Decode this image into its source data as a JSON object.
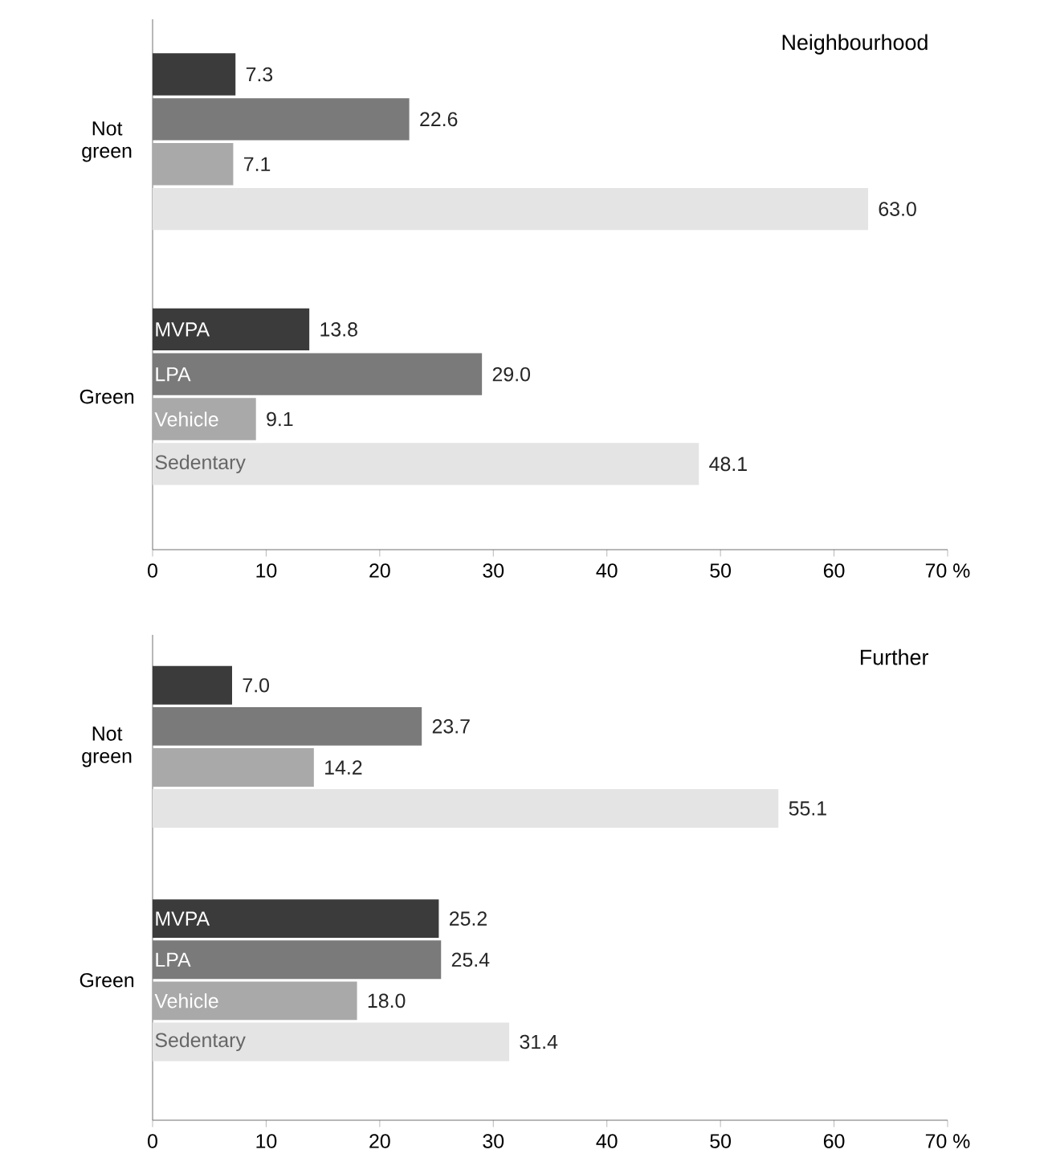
{
  "chart_data": [
    {
      "type": "bar",
      "orientation": "horizontal",
      "title": "Neighbourhood",
      "categories": [
        "Not green",
        "Green"
      ],
      "legend": false,
      "series": [
        {
          "name": "MVPA",
          "color": "#3b3b3b",
          "values": [
            7.3,
            13.8
          ],
          "value_labels": [
            "7.3",
            "13.8"
          ]
        },
        {
          "name": "LPA",
          "color": "#7a7a7a",
          "values": [
            22.6,
            29.0
          ],
          "value_labels": [
            "22.6",
            "29.0"
          ]
        },
        {
          "name": "Vehicle",
          "color": "#a9a9a9",
          "values": [
            7.1,
            9.1
          ],
          "value_labels": [
            "7.1",
            "9.1"
          ]
        },
        {
          "name": "Sedentary",
          "color": "#e4e4e4",
          "values": [
            63.0,
            48.1
          ],
          "value_labels": [
            "63.0",
            "48.1"
          ]
        }
      ],
      "xlim": [
        0,
        70
      ],
      "xticks": [
        0,
        10,
        20,
        30,
        40,
        50,
        60,
        {
          "value": 70,
          "label": "70 %"
        }
      ]
    },
    {
      "type": "bar",
      "orientation": "horizontal",
      "title": "Further",
      "categories": [
        "Not green",
        "Green"
      ],
      "legend": false,
      "series": [
        {
          "name": "MVPA",
          "color": "#3b3b3b",
          "values": [
            7.0,
            25.2
          ],
          "value_labels": [
            "7.0",
            "25.2"
          ]
        },
        {
          "name": "LPA",
          "color": "#7a7a7a",
          "values": [
            23.7,
            25.4
          ],
          "value_labels": [
            "23.7",
            "25.4"
          ]
        },
        {
          "name": "Vehicle",
          "color": "#a9a9a9",
          "values": [
            14.2,
            18.0
          ],
          "value_labels": [
            "14.2",
            "18.0"
          ]
        },
        {
          "name": "Sedentary",
          "color": "#e4e4e4",
          "values": [
            55.1,
            31.4
          ],
          "value_labels": [
            "55.1",
            "31.4"
          ]
        }
      ],
      "xlim": [
        0,
        70
      ],
      "xticks": [
        0,
        10,
        20,
        30,
        40,
        50,
        60,
        {
          "value": 70,
          "label": "70 %"
        }
      ]
    }
  ]
}
